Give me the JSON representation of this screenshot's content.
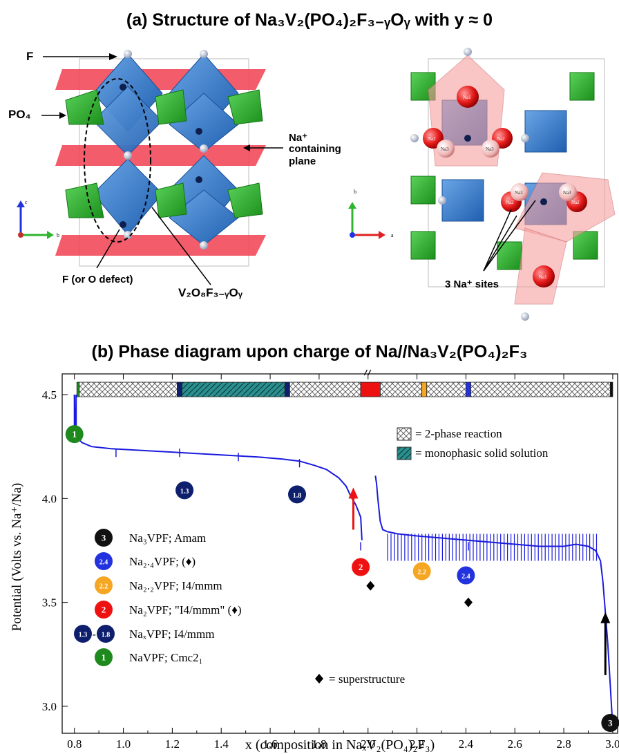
{
  "panel_a": {
    "title": "(a)  Structure of Na₃V₂(PO₄)₂F₃₋ᵧOᵧ with y ≈ 0",
    "label_f": "F",
    "label_po4": "PO₄",
    "label_na_plane_1": "Na⁺",
    "label_na_plane_2": "containing",
    "label_na_plane_3": "plane",
    "label_f_defect": "F (or O defect)",
    "label_v2o8": "V₂O₈F₃₋ᵧOᵧ",
    "label_na_sites": "3 Na⁺ sites",
    "axis_c": "c",
    "axis_b": "b",
    "axis_b2": "b",
    "axis_a": "a",
    "atom_na1": "Na1",
    "atom_na2": "Na2",
    "atom_na3": "Na3"
  },
  "panel_b": {
    "title": "(b)  Phase diagram upon charge of Na//Na₃V₂(PO₄)₂F₃"
  },
  "colors": {
    "curve": "#1a1adf",
    "octahedra": "#3b7fcf",
    "tetrahedra": "#2fb52f",
    "na_plane": "#f24a5a",
    "marker_green": "#1e8a1e",
    "marker_navy": "#0e1f6e",
    "marker_red": "#ee1111",
    "marker_orange": "#f5a623",
    "marker_blue": "#2233dd",
    "marker_black": "#111111",
    "monophasic": "#2b8f8f"
  },
  "chart_data": {
    "type": "line",
    "xlabel": "x (composition in NaₓV₂(PO₄)₂F₃)",
    "ylabel": "Potential (Volts vs. Na⁺/Na)",
    "xlim": [
      0.75,
      3.02
    ],
    "ylim": [
      2.87,
      4.6
    ],
    "x_ticks": [
      "0.8",
      "1.0",
      "1.2",
      "1.4",
      "1.6",
      "1.8",
      "2.0",
      "2.2",
      "2.4",
      "2.6",
      "2.8",
      "3.0"
    ],
    "y_ticks": [
      "3.0",
      "3.5",
      "4.0",
      "4.5"
    ],
    "series": [
      {
        "x": [
          0.8,
          0.805,
          0.81,
          0.83,
          0.87,
          0.95,
          1.1,
          1.25,
          1.4,
          1.55,
          1.65,
          1.72,
          1.78,
          1.83,
          1.88,
          1.91,
          1.93,
          1.95,
          1.96,
          1.97,
          1.975
        ],
        "y": [
          4.5,
          4.33,
          4.3,
          4.27,
          4.25,
          4.24,
          4.23,
          4.22,
          4.21,
          4.2,
          4.19,
          4.18,
          4.16,
          4.14,
          4.1,
          4.06,
          4.01,
          3.97,
          3.94,
          3.91,
          3.8
        ]
      },
      {
        "x": [
          2.03,
          2.035,
          2.04,
          2.05,
          2.06,
          2.08,
          2.12,
          2.2,
          2.3,
          2.4,
          2.5,
          2.6,
          2.7,
          2.8,
          2.85,
          2.9,
          2.93,
          2.95,
          2.96,
          2.97,
          2.98,
          2.99,
          3.0
        ],
        "y": [
          4.11,
          4.07,
          4.0,
          3.89,
          3.85,
          3.84,
          3.83,
          3.82,
          3.81,
          3.8,
          3.79,
          3.78,
          3.77,
          3.77,
          3.78,
          3.77,
          3.75,
          3.7,
          3.6,
          3.45,
          3.3,
          3.1,
          2.9
        ]
      }
    ],
    "spikes": [
      {
        "x": 0.97,
        "y": 4.2
      },
      {
        "x": 1.23,
        "y": 4.2
      },
      {
        "x": 1.47,
        "y": 4.18
      },
      {
        "x": 1.72,
        "y": 4.15
      },
      {
        "x": 1.97,
        "y": 3.75
      },
      {
        "x": 2.41,
        "y": 3.75
      }
    ],
    "phase_bar": [
      {
        "from": 0.81,
        "to": 0.82,
        "kind": "green"
      },
      {
        "from": 0.82,
        "to": 1.22,
        "kind": "2-phase"
      },
      {
        "from": 1.22,
        "to": 1.24,
        "kind": "navy"
      },
      {
        "from": 1.24,
        "to": 1.66,
        "kind": "monophasic"
      },
      {
        "from": 1.66,
        "to": 1.68,
        "kind": "navy"
      },
      {
        "from": 1.68,
        "to": 1.97,
        "kind": "2-phase"
      },
      {
        "from": 1.97,
        "to": 2.05,
        "kind": "red"
      },
      {
        "from": 2.05,
        "to": 2.22,
        "kind": "2-phase"
      },
      {
        "from": 2.22,
        "to": 2.24,
        "kind": "orange"
      },
      {
        "from": 2.24,
        "to": 2.4,
        "kind": "2-phase"
      },
      {
        "from": 2.4,
        "to": 2.42,
        "kind": "blue"
      },
      {
        "from": 2.42,
        "to": 2.99,
        "kind": "2-phase"
      },
      {
        "from": 2.99,
        "to": 3.0,
        "kind": "black"
      }
    ],
    "phase_markers": [
      {
        "label": "1",
        "x": 0.8,
        "y": 4.31,
        "color": "green"
      },
      {
        "label": "1.3",
        "x": 1.25,
        "y": 4.04,
        "color": "navy"
      },
      {
        "label": "1.8",
        "x": 1.71,
        "y": 4.02,
        "color": "navy"
      },
      {
        "label": "2",
        "x": 1.97,
        "y": 3.67,
        "color": "red"
      },
      {
        "label": "2.2",
        "x": 2.22,
        "y": 3.65,
        "color": "orange"
      },
      {
        "label": "2.4",
        "x": 2.4,
        "y": 3.63,
        "color": "blue"
      },
      {
        "label": "3",
        "x": 2.99,
        "y": 2.92,
        "color": "black"
      }
    ],
    "superstructure_points": [
      {
        "x": 2.01,
        "y": 3.58
      },
      {
        "x": 2.41,
        "y": 3.5
      }
    ],
    "arrows": [
      {
        "x": 1.94,
        "y_from": 3.85,
        "y_to": 4.04,
        "color": "red"
      },
      {
        "x": 2.97,
        "y_from": 3.15,
        "y_to": 3.44,
        "color": "black"
      }
    ],
    "legend_top": [
      "= 2-phase reaction",
      "= monophasic solid solution"
    ],
    "legend_phases": [
      {
        "badge": "3",
        "color": "black",
        "text": "Na₃VPF; Amam"
      },
      {
        "badge": "2.4",
        "color": "blue",
        "text": "Na₂.₄VPF; (♦)"
      },
      {
        "badge": "2.2",
        "color": "orange",
        "text": "Na₂.₂VPF; I4/mmm"
      },
      {
        "badge": "2",
        "color": "red",
        "text": "Na₂VPF; \"I4/mmm\" (♦)"
      },
      {
        "badge": "1.3",
        "badge2": "1.8",
        "color": "navy",
        "text": "NaₓVPF; I4/mmm"
      },
      {
        "badge": "1",
        "color": "green",
        "text": "NaVPF; Cmc2₁"
      }
    ],
    "legend_superstructure": "= superstructure",
    "grid": false
  }
}
